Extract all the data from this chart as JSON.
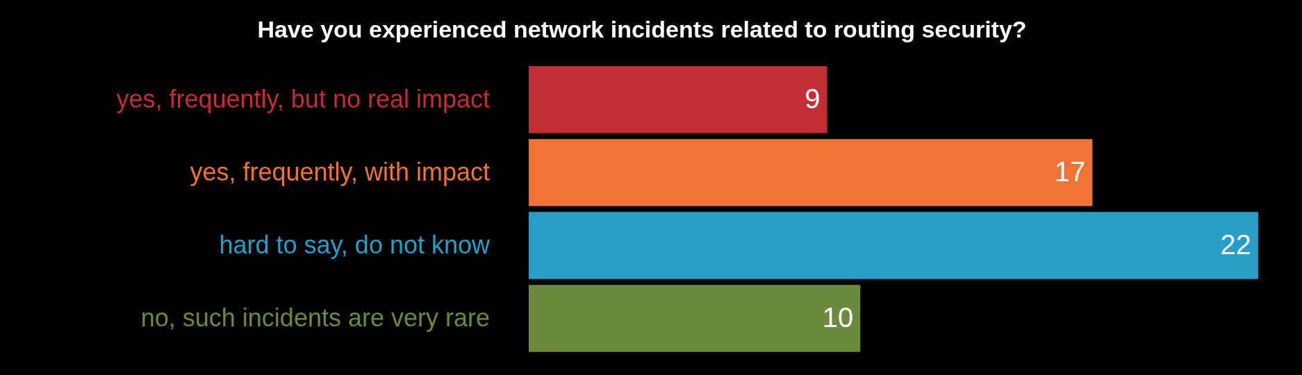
{
  "chart_data": {
    "type": "bar",
    "orientation": "horizontal",
    "title": "Have you experienced network incidents related to routing security?",
    "categories": [
      "yes, frequently, but no real impact",
      "yes, frequently, with impact",
      "hard to say, do not know",
      "no, such incidents are very rare"
    ],
    "values": [
      9,
      17,
      22,
      10
    ],
    "colors": [
      "#c22d36",
      "#ef7335",
      "#289dc8",
      "#6b8a3f"
    ],
    "xlim": [
      0,
      22
    ],
    "data_labels": true,
    "tick_labels": "y"
  }
}
